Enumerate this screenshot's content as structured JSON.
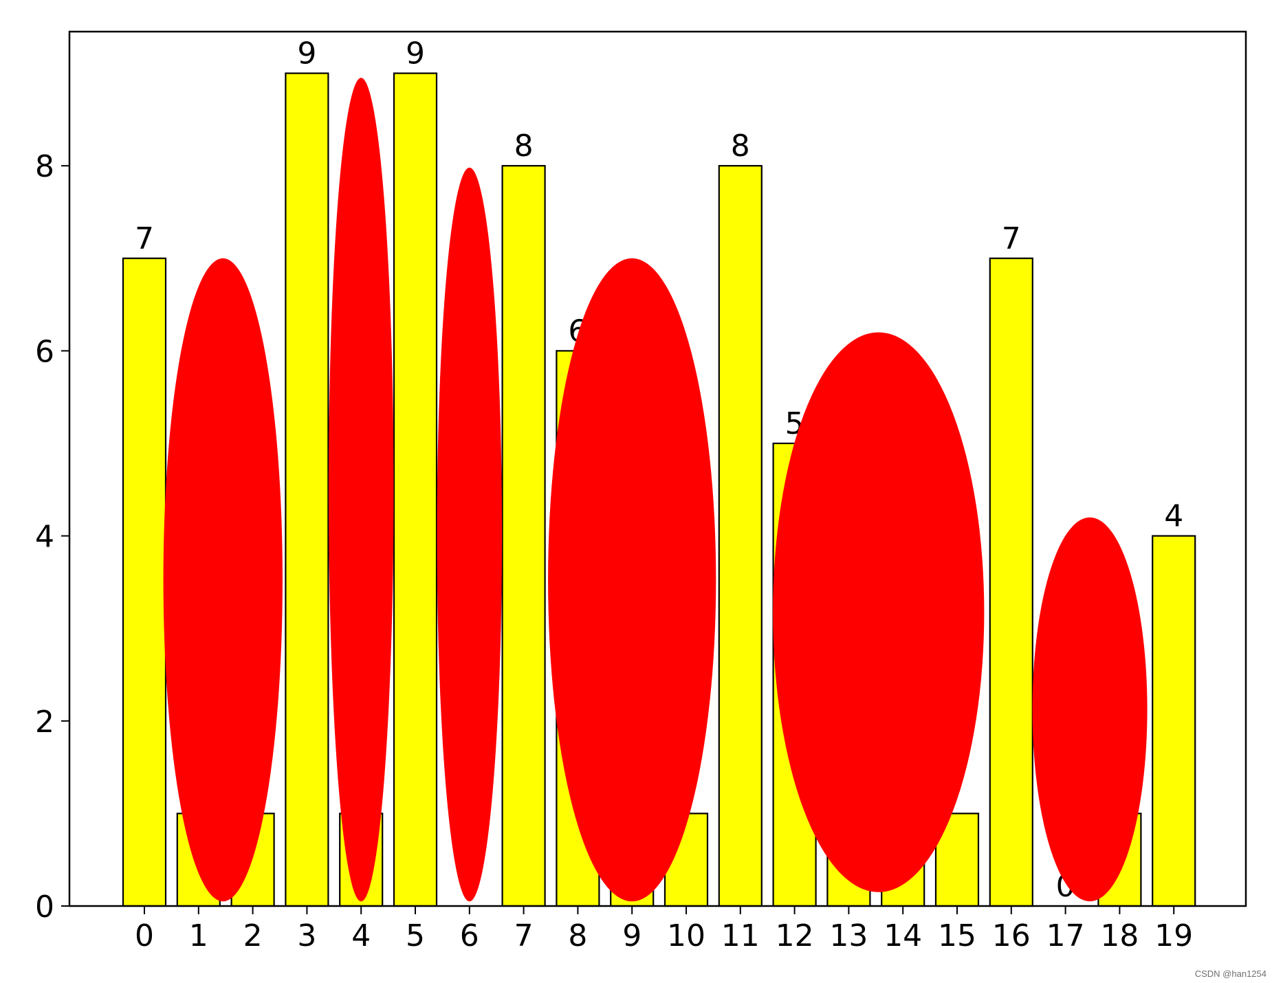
{
  "chart_data": {
    "type": "bar",
    "categories": [
      "0",
      "1",
      "2",
      "3",
      "4",
      "5",
      "6",
      "7",
      "8",
      "9",
      "10",
      "11",
      "12",
      "13",
      "14",
      "15",
      "16",
      "17",
      "18",
      "19"
    ],
    "values": [
      7,
      1,
      1,
      9,
      1,
      9,
      0,
      8,
      6,
      1,
      1,
      8,
      5,
      1,
      1,
      1,
      7,
      0,
      1,
      4
    ],
    "visible_data_labels": [
      0,
      3,
      5,
      7,
      8,
      11,
      12,
      16,
      17,
      19
    ],
    "ylim": [
      0,
      9.45
    ],
    "yticks": [
      0,
      2,
      4,
      6,
      8
    ],
    "bar_color": "#ffff00",
    "edge_color": "#000000",
    "grid": false,
    "title": "",
    "xlabel": "",
    "ylabel": "",
    "overlays": [
      {
        "shape": "ellipse",
        "color": "#ff0000",
        "x_center": 1.45,
        "x_halfwidth": 1.1,
        "y_low": 0.05,
        "y_high": 7.0
      },
      {
        "shape": "ellipse",
        "color": "#ff0000",
        "x_center": 4.0,
        "x_halfwidth": 0.6,
        "y_low": 0.05,
        "y_high": 8.95
      },
      {
        "shape": "ellipse",
        "color": "#ff0000",
        "x_center": 6.0,
        "x_halfwidth": 0.6,
        "y_low": 0.05,
        "y_high": 7.98
      },
      {
        "shape": "ellipse",
        "color": "#ff0000",
        "x_center": 9.0,
        "x_halfwidth": 1.55,
        "y_low": 0.05,
        "y_high": 7.0
      },
      {
        "shape": "ellipse",
        "color": "#ff0000",
        "x_center": 13.55,
        "x_halfwidth": 1.95,
        "y_low": 0.15,
        "y_high": 6.2
      },
      {
        "shape": "ellipse",
        "color": "#ff0000",
        "x_center": 17.45,
        "x_halfwidth": 1.06,
        "y_low": 0.05,
        "y_high": 4.2
      }
    ]
  },
  "watermark": "CSDN @han1254"
}
